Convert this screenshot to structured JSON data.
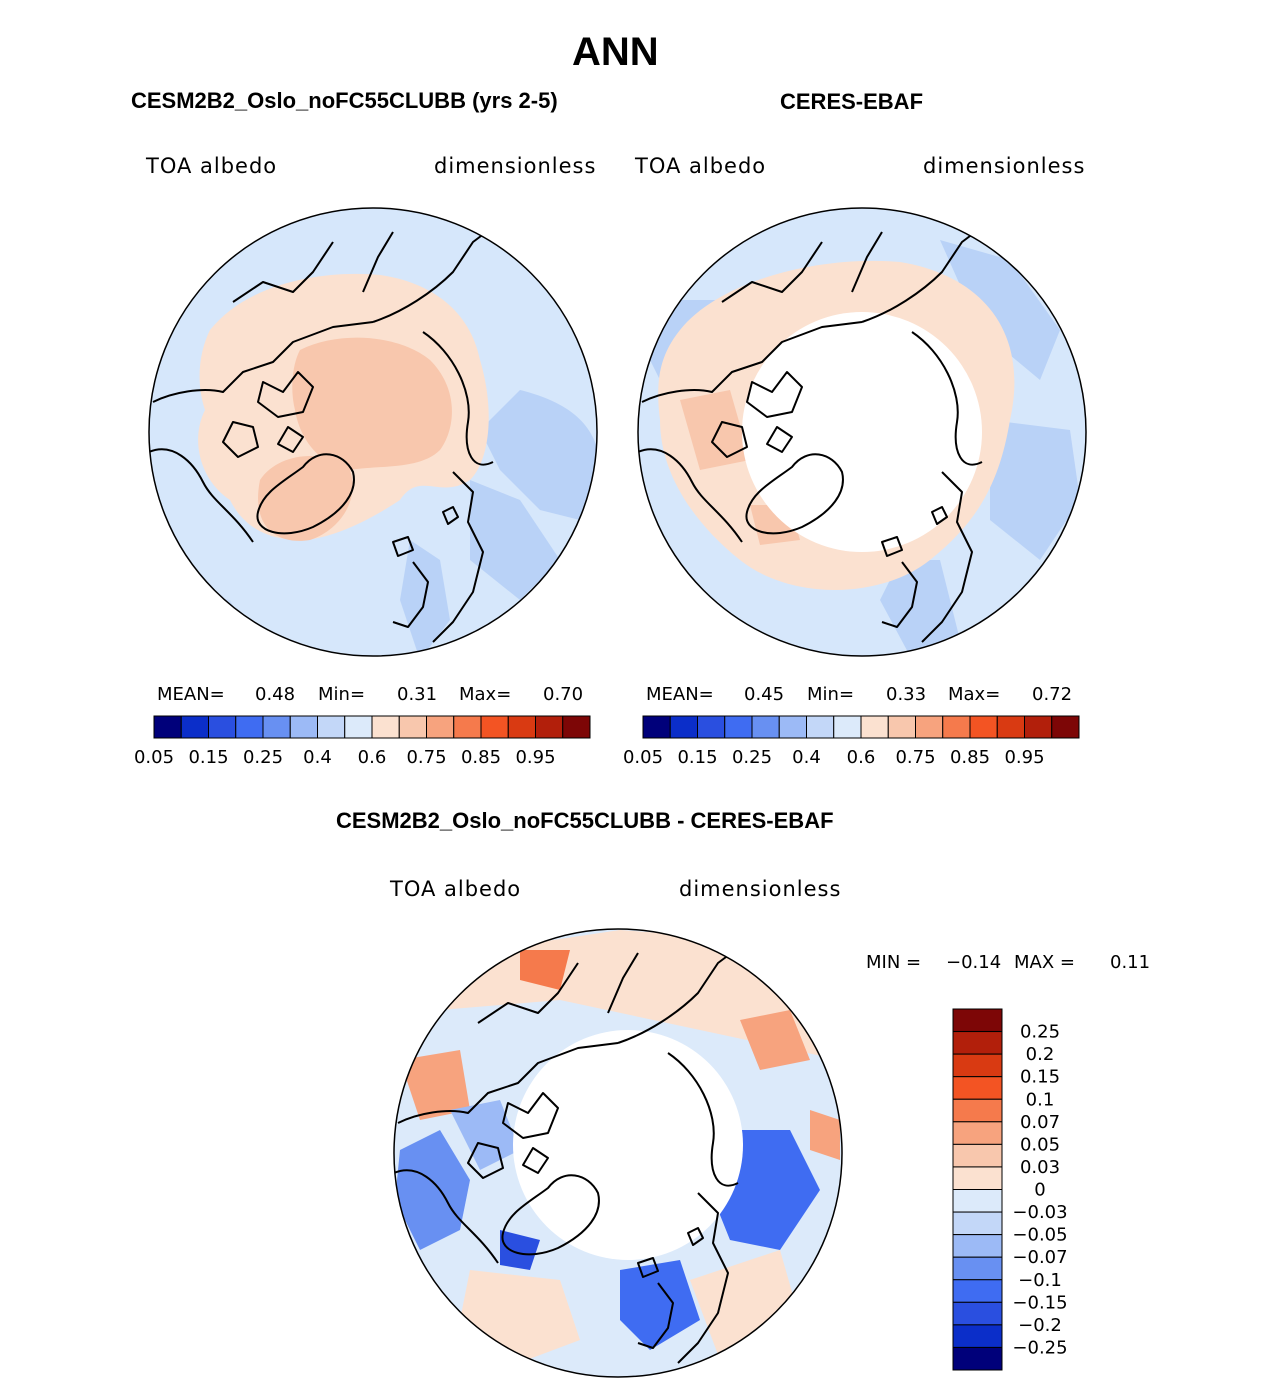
{
  "title": "ANN",
  "colors": {
    "scale_blue": [
      "#00007a",
      "#0b2ec9",
      "#2a4fe0",
      "#3f6cf2",
      "#6890f2",
      "#9cbaf6",
      "#c3d7f8",
      "#dceafa"
    ],
    "scale_red": [
      "#fbe1d0",
      "#f8c7ad",
      "#f7a37e",
      "#f57a4c",
      "#f35423",
      "#d93a12",
      "#b21f0b",
      "#7d0606"
    ],
    "land_outline": "#000000"
  },
  "panels": [
    {
      "title": "CESM2B2_Oslo_noFC55CLUBB (yrs 2-5)",
      "variable": "TOA albedo",
      "units": "dimensionless",
      "mean_label": "MEAN=",
      "mean": "0.48",
      "min_label": "Min=",
      "min": "0.31",
      "max_label": "Max=",
      "max": "0.70",
      "colorbar_labels": [
        "0.05",
        "0.15",
        "0.25",
        "0.4",
        "0.6",
        "0.75",
        "0.85",
        "0.95"
      ]
    },
    {
      "title": "CERES-EBAF",
      "variable": "TOA albedo",
      "units": "dimensionless",
      "mean_label": "MEAN=",
      "mean": "0.45",
      "min_label": "Min=",
      "min": "0.33",
      "max_label": "Max=",
      "max": "0.72",
      "colorbar_labels": [
        "0.05",
        "0.15",
        "0.25",
        "0.4",
        "0.6",
        "0.75",
        "0.85",
        "0.95"
      ]
    }
  ],
  "diff": {
    "title": "CESM2B2_Oslo_noFC55CLUBB - CERES-EBAF",
    "variable": "TOA albedo",
    "units": "dimensionless",
    "min_label": "MIN =",
    "min": "−0.14",
    "max_label": "MAX =",
    "max": "0.11",
    "colorbar_labels": [
      "0.25",
      "0.2",
      "0.15",
      "0.1",
      "0.07",
      "0.05",
      "0.03",
      "0",
      "−0.03",
      "−0.05",
      "−0.07",
      "−0.1",
      "−0.15",
      "−0.2",
      "−0.25"
    ]
  },
  "chart_data": [
    {
      "type": "heatmap",
      "projection": "north polar stereographic",
      "title": "CESM2B2_Oslo_noFC55CLUBB (yrs 2-5)",
      "variable": "TOA albedo",
      "units": "dimensionless",
      "levels": [
        0.05,
        0.1,
        0.15,
        0.2,
        0.25,
        0.3,
        0.4,
        0.5,
        0.6,
        0.7,
        0.75,
        0.8,
        0.85,
        0.9,
        0.95
      ],
      "stats": {
        "mean": 0.48,
        "min": 0.31,
        "max": 0.7
      }
    },
    {
      "type": "heatmap",
      "projection": "north polar stereographic",
      "title": "CERES-EBAF",
      "variable": "TOA albedo",
      "units": "dimensionless",
      "levels": [
        0.05,
        0.1,
        0.15,
        0.2,
        0.25,
        0.3,
        0.4,
        0.5,
        0.6,
        0.7,
        0.75,
        0.8,
        0.85,
        0.9,
        0.95
      ],
      "stats": {
        "mean": 0.45,
        "min": 0.33,
        "max": 0.72
      }
    },
    {
      "type": "heatmap",
      "projection": "north polar stereographic",
      "title": "CESM2B2_Oslo_noFC55CLUBB - CERES-EBAF",
      "variable": "TOA albedo",
      "units": "dimensionless",
      "levels": [
        -0.25,
        -0.2,
        -0.15,
        -0.1,
        -0.07,
        -0.05,
        -0.03,
        0,
        0.03,
        0.05,
        0.07,
        0.1,
        0.15,
        0.2,
        0.25
      ],
      "stats": {
        "min": -0.14,
        "max": 0.11
      }
    }
  ]
}
